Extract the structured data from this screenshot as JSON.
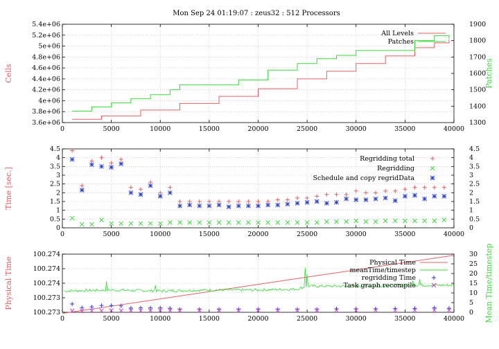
{
  "figure_title": "Mon Sep 24 01:19:07 : zeus32 : 512 Processors",
  "colors": {
    "red": "#e06060",
    "green": "#38d838",
    "blue": "#2b3fd0",
    "magenta": "#cc44cc"
  },
  "chart_data": [
    {
      "type": "line",
      "ylabel": "Cells",
      "y2label": "Patches",
      "xlim": [
        0,
        40000
      ],
      "ylim": [
        3600000,
        5400000
      ],
      "y2lim": [
        1300,
        1900
      ],
      "xticks": [
        "0",
        "5000",
        "10000",
        "15000",
        "20000",
        "25000",
        "30000",
        "35000",
        "40000"
      ],
      "yticks": [
        "3.6e+06",
        "3.8e+06",
        "4e+06",
        "4.2e+06",
        "4.4e+06",
        "4.6e+06",
        "4.8e+06",
        "5e+06",
        "5.2e+06",
        "5.4e+06"
      ],
      "y2ticks": [
        "1300",
        "1400",
        "1500",
        "1600",
        "1700",
        "1800",
        "1900"
      ],
      "grid": true,
      "legend_position": "top-right",
      "series": [
        {
          "name": "All Levels",
          "axis": "left",
          "color": "red",
          "style": "step",
          "x": [
            1000,
            4000,
            8000,
            12000,
            16000,
            20000,
            24000,
            27000,
            30000,
            33000,
            36000,
            38000,
            39500
          ],
          "y": [
            3660000,
            3720000,
            3830000,
            3950000,
            4080000,
            4220000,
            4400000,
            4540000,
            4680000,
            4820000,
            4970000,
            5060000,
            5120000
          ]
        },
        {
          "name": "Patches",
          "axis": "right",
          "color": "green",
          "style": "step",
          "x": [
            1000,
            3000,
            5000,
            7000,
            9000,
            11000,
            12000,
            15000,
            18000,
            20000,
            21000,
            24000,
            26000,
            28000,
            30000,
            33000,
            36000,
            38000,
            39500
          ],
          "y": [
            1370,
            1395,
            1420,
            1445,
            1470,
            1500,
            1530,
            1530,
            1560,
            1560,
            1620,
            1660,
            1690,
            1710,
            1740,
            1740,
            1800,
            1830,
            1810
          ]
        }
      ]
    },
    {
      "type": "scatter",
      "ylabel": "Time [sec.]",
      "xlim": [
        0,
        40000
      ],
      "ylim": [
        0,
        4.5
      ],
      "xticks": [
        "0",
        "5000",
        "10000",
        "15000",
        "20000",
        "25000",
        "30000",
        "35000",
        "40000"
      ],
      "yticks": [
        "0",
        "0.5",
        "1",
        "1.5",
        "2",
        "2.5",
        "3",
        "3.5",
        "4",
        "4.5"
      ],
      "y2ticks": [
        "0",
        "0.5",
        "1",
        "1.5",
        "2",
        "2.5",
        "3",
        "3.5",
        "4",
        "4.5"
      ],
      "grid": true,
      "legend_position": "top-right",
      "series": [
        {
          "name": "Regridding total",
          "color": "red",
          "marker": "+",
          "x": [
            1000,
            2000,
            3000,
            4000,
            5000,
            6000,
            7000,
            8000,
            9000,
            10000,
            11000,
            12000,
            13000,
            14000,
            15000,
            16000,
            17000,
            18000,
            19000,
            20000,
            21000,
            22000,
            23000,
            24000,
            25000,
            26000,
            27000,
            28000,
            29000,
            30000,
            31000,
            32000,
            33000,
            34000,
            35000,
            36000,
            37000,
            38000,
            39000
          ],
          "y": [
            4.4,
            2.4,
            3.8,
            4.0,
            3.7,
            3.9,
            2.3,
            2.2,
            2.6,
            2.0,
            2.3,
            1.5,
            1.5,
            1.5,
            1.5,
            1.5,
            1.5,
            1.5,
            1.5,
            1.5,
            1.5,
            1.6,
            1.6,
            1.7,
            1.7,
            1.8,
            1.9,
            1.9,
            1.9,
            2.1,
            2.0,
            2.0,
            2.1,
            2.1,
            2.2,
            2.3,
            2.3,
            2.3,
            2.3
          ]
        },
        {
          "name": "Regridding",
          "color": "green",
          "marker": "x",
          "x": [
            1000,
            2000,
            3000,
            4000,
            5000,
            6000,
            7000,
            8000,
            9000,
            10000,
            11000,
            12000,
            13000,
            14000,
            15000,
            16000,
            17000,
            18000,
            19000,
            20000,
            21000,
            22000,
            23000,
            24000,
            25000,
            26000,
            27000,
            28000,
            29000,
            30000,
            31000,
            32000,
            33000,
            34000,
            35000,
            36000,
            37000,
            38000,
            39000
          ],
          "y": [
            0.55,
            0.2,
            0.2,
            0.45,
            0.25,
            0.25,
            0.25,
            0.25,
            0.25,
            0.25,
            0.3,
            0.3,
            0.3,
            0.3,
            0.3,
            0.3,
            0.3,
            0.3,
            0.3,
            0.3,
            0.3,
            0.3,
            0.3,
            0.3,
            0.3,
            0.3,
            0.35,
            0.35,
            0.35,
            0.4,
            0.35,
            0.35,
            0.4,
            0.4,
            0.4,
            0.4,
            0.4,
            0.4,
            0.45
          ]
        },
        {
          "name": "Schedule and copy regridData",
          "color": "blue",
          "marker": "*",
          "x": [
            1000,
            2000,
            3000,
            4000,
            5000,
            6000,
            7000,
            8000,
            9000,
            10000,
            11000,
            12000,
            13000,
            14000,
            15000,
            16000,
            17000,
            18000,
            19000,
            20000,
            21000,
            22000,
            23000,
            24000,
            25000,
            26000,
            27000,
            28000,
            29000,
            30000,
            31000,
            32000,
            33000,
            34000,
            35000,
            36000,
            37000,
            38000,
            39000
          ],
          "y": [
            3.9,
            2.15,
            3.6,
            3.5,
            3.45,
            3.65,
            2.0,
            1.9,
            2.4,
            1.8,
            2.0,
            1.25,
            1.3,
            1.25,
            1.25,
            1.3,
            1.2,
            1.25,
            1.25,
            1.25,
            1.3,
            1.3,
            1.35,
            1.4,
            1.45,
            1.5,
            1.4,
            1.45,
            1.65,
            1.6,
            1.6,
            1.65,
            1.7,
            1.55,
            1.8,
            1.85,
            1.65,
            1.8,
            1.8
          ]
        }
      ]
    },
    {
      "type": "line",
      "ylabel": "Physical Time",
      "y2label": "Mean Time/timestep",
      "xlim": [
        0,
        40000
      ],
      "ylim": [
        0,
        1
      ],
      "y2lim": [
        0,
        30
      ],
      "xticks": [
        "0",
        "5000",
        "10000",
        "15000",
        "20000",
        "25000",
        "30000",
        "35000",
        "40000"
      ],
      "yticks": [
        "100.273",
        "100.273",
        "100.274",
        "100.274",
        "100.274"
      ],
      "y2ticks": [
        "0",
        "5",
        "10",
        "15",
        "20",
        "25",
        "30"
      ],
      "grid": true,
      "legend_position": "top-right",
      "series": [
        {
          "name": "Physical Time",
          "axis": "left",
          "color": "red",
          "style": "line",
          "x": [
            0,
            40000
          ],
          "y": [
            -0.02,
            0.98
          ]
        },
        {
          "name": "meanTime/timestep",
          "axis": "right",
          "color": "green",
          "style": "noisy-line",
          "x": [
            0,
            5000,
            10000,
            15000,
            20000,
            24000,
            25000,
            30000,
            35000,
            40000
          ],
          "y": [
            11,
            11.5,
            11,
            11.5,
            11.5,
            12,
            13.5,
            13.5,
            14,
            14
          ]
        },
        {
          "name": "regridding Time",
          "axis": "right",
          "color": "blue",
          "marker": "+",
          "x": [
            1000,
            2000,
            3000,
            4000,
            5000,
            6000,
            7000,
            8000,
            9000,
            10000,
            11000,
            12000,
            14000,
            16000,
            18000,
            20000,
            22000,
            24000,
            26000,
            28000,
            30000,
            32000,
            34000,
            36000,
            38000,
            39500
          ],
          "y": [
            4.3,
            2.4,
            2.8,
            3.5,
            3.5,
            3.3,
            2.2,
            2.3,
            2.3,
            2.3,
            2.1,
            1.5,
            1.5,
            1.5,
            1.5,
            1.5,
            1.5,
            1.5,
            1.5,
            1.8,
            1.8,
            1.8,
            1.9,
            2.0,
            2.3,
            2.1
          ]
        },
        {
          "name": "Task graph recompile",
          "axis": "right",
          "color": "magenta",
          "marker": "x",
          "x": [
            1000,
            2000,
            3000,
            4000,
            5000,
            6000,
            7000,
            8000,
            9000,
            10000,
            11000,
            12000,
            14000,
            16000,
            18000,
            20000,
            22000,
            24000,
            26000,
            28000,
            30000,
            32000,
            34000,
            36000,
            38000,
            39500
          ],
          "y": [
            0.8,
            0.7,
            0.8,
            0.8,
            0.9,
            0.9,
            0.9,
            0.8,
            0.9,
            0.9,
            0.9,
            1.0,
            1.0,
            1.0,
            1.0,
            1.0,
            1.0,
            1.0,
            1.0,
            1.0,
            1.0,
            1.0,
            1.0,
            1.0,
            1.0,
            1.0
          ]
        }
      ]
    }
  ]
}
